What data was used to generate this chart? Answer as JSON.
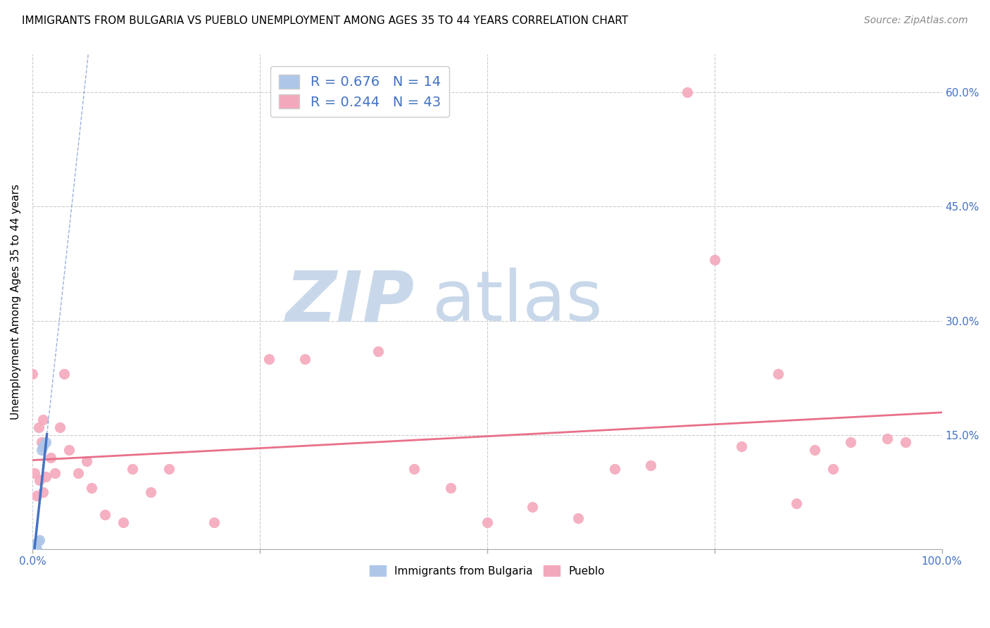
{
  "title": "IMMIGRANTS FROM BULGARIA VS PUEBLO UNEMPLOYMENT AMONG AGES 35 TO 44 YEARS CORRELATION CHART",
  "source": "Source: ZipAtlas.com",
  "ylabel": "Unemployment Among Ages 35 to 44 years",
  "xlim": [
    0.0,
    1.0
  ],
  "ylim": [
    0.0,
    0.65
  ],
  "ytick_positions": [
    0.15,
    0.3,
    0.45,
    0.6
  ],
  "ytick_labels": [
    "15.0%",
    "30.0%",
    "45.0%",
    "60.0%"
  ],
  "grid_color": "#cccccc",
  "background_color": "#ffffff",
  "watermark_zip": "ZIP",
  "watermark_atlas": "atlas",
  "legend_r1": "R = 0.676",
  "legend_n1": "N = 14",
  "legend_r2": "R = 0.244",
  "legend_n2": "N = 43",
  "bulgaria_color": "#aec6e8",
  "pueblo_color": "#f4a8bc",
  "bulgaria_line_color": "#4472c4",
  "pueblo_line_color": "#e8708a",
  "bulgaria_scatter_x": [
    0.0,
    0.001,
    0.001,
    0.002,
    0.002,
    0.003,
    0.003,
    0.004,
    0.005,
    0.006,
    0.008,
    0.01,
    0.012,
    0.015
  ],
  "bulgaria_scatter_y": [
    0.0,
    0.0,
    0.005,
    0.0,
    0.003,
    0.0,
    0.002,
    0.0,
    0.0,
    0.01,
    0.012,
    0.13,
    0.135,
    0.14
  ],
  "pueblo_scatter_x": [
    0.0,
    0.002,
    0.005,
    0.007,
    0.008,
    0.01,
    0.012,
    0.012,
    0.015,
    0.02,
    0.025,
    0.03,
    0.035,
    0.04,
    0.05,
    0.06,
    0.065,
    0.08,
    0.1,
    0.11,
    0.13,
    0.15,
    0.2,
    0.26,
    0.3,
    0.38,
    0.42,
    0.46,
    0.5,
    0.55,
    0.6,
    0.64,
    0.68,
    0.72,
    0.75,
    0.78,
    0.82,
    0.84,
    0.86,
    0.88,
    0.9,
    0.94,
    0.96
  ],
  "pueblo_scatter_y": [
    0.23,
    0.1,
    0.07,
    0.16,
    0.09,
    0.14,
    0.17,
    0.075,
    0.095,
    0.12,
    0.1,
    0.16,
    0.23,
    0.13,
    0.1,
    0.115,
    0.08,
    0.045,
    0.035,
    0.105,
    0.075,
    0.105,
    0.035,
    0.25,
    0.25,
    0.26,
    0.105,
    0.08,
    0.035,
    0.055,
    0.04,
    0.105,
    0.11,
    0.6,
    0.38,
    0.135,
    0.23,
    0.06,
    0.13,
    0.105,
    0.14,
    0.145,
    0.14
  ],
  "title_fontsize": 11,
  "source_fontsize": 10,
  "axis_label_fontsize": 11,
  "tick_fontsize": 11,
  "legend_fontsize": 14,
  "watermark_fontsize_zip": 72,
  "watermark_fontsize_atlas": 72,
  "watermark_color": "#c8d8ea",
  "marker_size": 120
}
